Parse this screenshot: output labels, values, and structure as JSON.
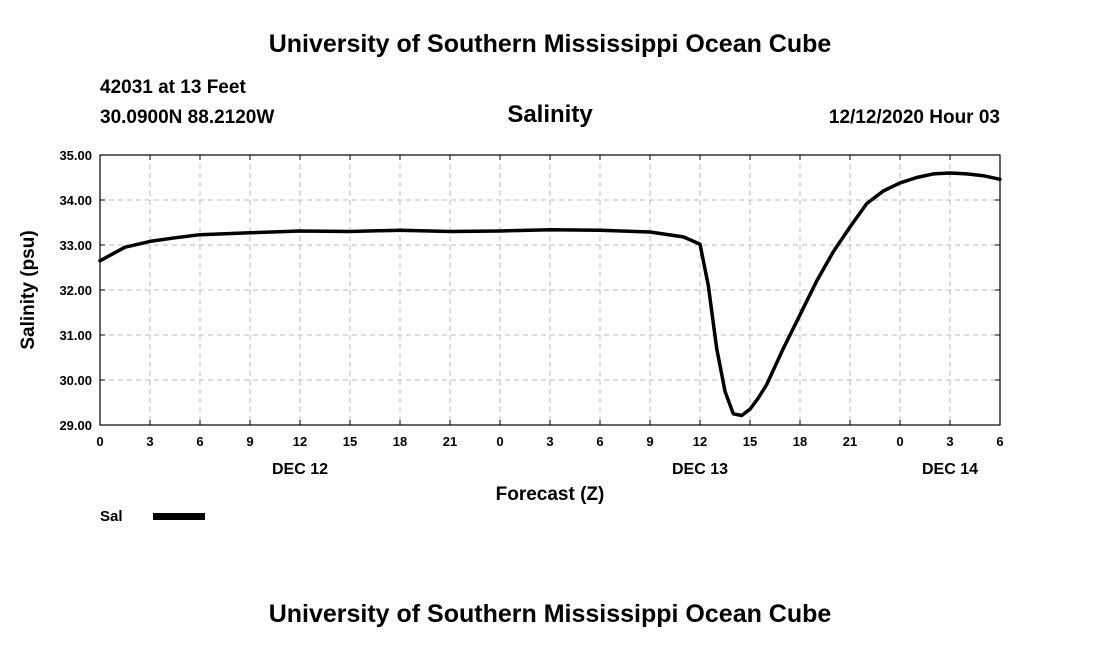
{
  "header": {
    "title": "University of Southern Mississippi Ocean Cube",
    "station": "42031 at 13 Feet",
    "coords": "30.0900N 88.2120W",
    "timestamp": "12/12/2020 Hour 03"
  },
  "footer": {
    "title": "University of Southern Mississippi Ocean Cube"
  },
  "legend": {
    "label": "Sal"
  },
  "chart_data": {
    "type": "line",
    "title": "Salinity",
    "xlabel": "Forecast (Z)",
    "ylabel": "Salinity (psu)",
    "xlim": [
      0,
      54
    ],
    "ylim": [
      29.0,
      35.0
    ],
    "grid": true,
    "x_ticks": [
      {
        "x": 0,
        "label": "0"
      },
      {
        "x": 3,
        "label": "3"
      },
      {
        "x": 6,
        "label": "6"
      },
      {
        "x": 9,
        "label": "9"
      },
      {
        "x": 12,
        "label": "12"
      },
      {
        "x": 15,
        "label": "15"
      },
      {
        "x": 18,
        "label": "18"
      },
      {
        "x": 21,
        "label": "21"
      },
      {
        "x": 24,
        "label": "0"
      },
      {
        "x": 27,
        "label": "3"
      },
      {
        "x": 30,
        "label": "6"
      },
      {
        "x": 33,
        "label": "9"
      },
      {
        "x": 36,
        "label": "12"
      },
      {
        "x": 39,
        "label": "15"
      },
      {
        "x": 42,
        "label": "18"
      },
      {
        "x": 45,
        "label": "21"
      },
      {
        "x": 48,
        "label": "0"
      },
      {
        "x": 51,
        "label": "3"
      },
      {
        "x": 54,
        "label": "6"
      }
    ],
    "y_ticks": [
      "29.00",
      "30.00",
      "31.00",
      "32.00",
      "33.00",
      "34.00",
      "35.00"
    ],
    "date_labels": [
      {
        "x": 12,
        "label": "DEC 12"
      },
      {
        "x": 36,
        "label": "DEC 13"
      },
      {
        "x": 51,
        "label": "DEC 14"
      }
    ],
    "series": [
      {
        "name": "Sal",
        "x": [
          0,
          1.5,
          3,
          4.5,
          6,
          9,
          12,
          15,
          18,
          21,
          24,
          27,
          30,
          33,
          35,
          36,
          36.5,
          37,
          37.5,
          38,
          38.5,
          39,
          39.5,
          40,
          41,
          42,
          43,
          44,
          45,
          46,
          47,
          48,
          49,
          50,
          51,
          52,
          53,
          54
        ],
        "values": [
          32.65,
          32.95,
          33.08,
          33.16,
          33.23,
          33.27,
          33.31,
          33.3,
          33.33,
          33.3,
          33.31,
          33.34,
          33.33,
          33.29,
          33.18,
          33.02,
          32.1,
          30.7,
          29.75,
          29.25,
          29.21,
          29.35,
          29.6,
          29.9,
          30.7,
          31.45,
          32.2,
          32.85,
          33.4,
          33.92,
          34.2,
          34.38,
          34.5,
          34.58,
          34.6,
          34.58,
          34.54,
          34.46
        ]
      }
    ]
  }
}
